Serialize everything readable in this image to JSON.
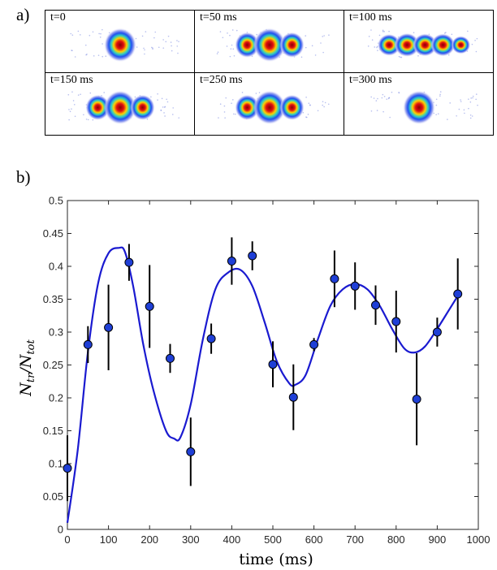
{
  "panel_a_label": "a)",
  "panel_b_label": "b)",
  "image_panels": [
    {
      "label": "t=0",
      "peaks": 1
    },
    {
      "label": "t=50 ms",
      "peaks": 3
    },
    {
      "label": "t=100 ms",
      "peaks": 5
    },
    {
      "label": "t=150 ms",
      "peaks": 3
    },
    {
      "label": "t=250 ms",
      "peaks": 3
    },
    {
      "label": "t=300 ms",
      "peaks": 1
    }
  ],
  "colors": {
    "marker": "#1f3fd6",
    "fit_line": "#1a1ad0",
    "error_bar": "#000000"
  },
  "chart_data": {
    "type": "scatter",
    "xlabel": "time (ms)",
    "ylabel_main": "N",
    "ylabel_sub1": "tr",
    "ylabel_sep": "/N",
    "ylabel_sub2": "tot",
    "xlim": [
      0,
      1000
    ],
    "ylim": [
      0,
      0.5
    ],
    "xticks": [
      "0",
      "100",
      "200",
      "300",
      "400",
      "500",
      "600",
      "700",
      "800",
      "900",
      "1000"
    ],
    "yticks": [
      "0",
      "0.05",
      "0.1",
      "0.15",
      "0.2",
      "0.25",
      "0.3",
      "0.35",
      "0.4",
      "0.45",
      "0.5"
    ],
    "grid": false,
    "series": [
      {
        "type": "scatter",
        "x": [
          0,
          50,
          100,
          150,
          200,
          250,
          300,
          350,
          400,
          450,
          500,
          550,
          600,
          650,
          700,
          750,
          800,
          850,
          900,
          950
        ],
        "y": [
          0.093,
          0.281,
          0.307,
          0.406,
          0.339,
          0.26,
          0.118,
          0.29,
          0.408,
          0.416,
          0.251,
          0.201,
          0.281,
          0.381,
          0.37,
          0.341,
          0.316,
          0.198,
          0.3,
          0.358
        ],
        "err": [
          0.05,
          0.028,
          0.065,
          0.028,
          0.063,
          0.022,
          0.052,
          0.023,
          0.036,
          0.022,
          0.035,
          0.05,
          0.01,
          0.043,
          0.036,
          0.03,
          0.047,
          0.07,
          0.022,
          0.054
        ]
      },
      {
        "type": "line",
        "x": [
          0,
          25,
          50,
          75,
          100,
          125,
          140,
          160,
          185,
          210,
          240,
          260,
          275,
          300,
          330,
          360,
          390,
          420,
          450,
          480,
          510,
          540,
          555,
          580,
          610,
          640,
          670,
          700,
          730,
          760,
          790,
          820,
          845,
          870,
          900,
          930,
          950
        ],
        "y": [
          0.01,
          0.12,
          0.27,
          0.375,
          0.42,
          0.428,
          0.422,
          0.37,
          0.28,
          0.21,
          0.15,
          0.138,
          0.14,
          0.19,
          0.29,
          0.365,
          0.39,
          0.395,
          0.37,
          0.315,
          0.255,
          0.222,
          0.22,
          0.235,
          0.29,
          0.34,
          0.365,
          0.373,
          0.365,
          0.34,
          0.305,
          0.275,
          0.269,
          0.278,
          0.305,
          0.335,
          0.355
        ]
      }
    ]
  }
}
